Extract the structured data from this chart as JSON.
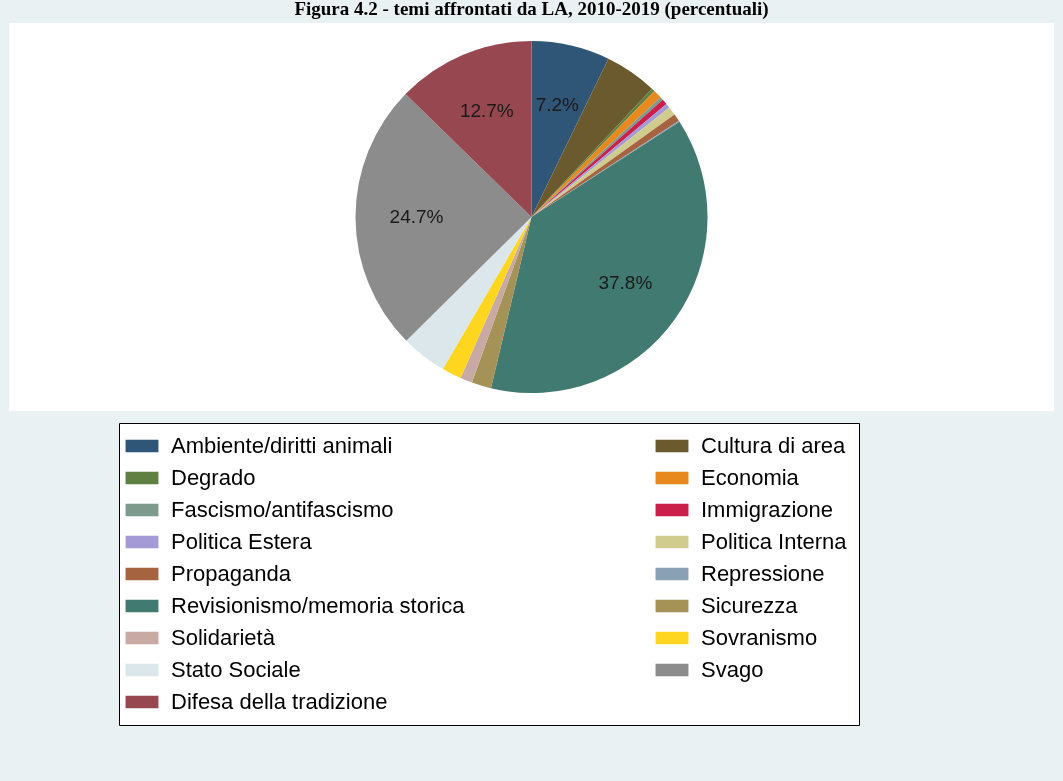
{
  "chart_data": {
    "type": "pie",
    "title": "Figura 4.2 - temi affrontati da LA, 2010-2019 (percentuali)",
    "categories": [
      "Ambiente/diritti animali",
      "Cultura di area",
      "Degrado",
      "Economia",
      "Fascismo/antifascismo",
      "Immigrazione",
      "Politica Estera",
      "Politica Interna",
      "Propaganda",
      "Repressione",
      "Revisionismo/memoria storica",
      "Sicurezza",
      "Solidarietà",
      "Sovranismo",
      "Stato Sociale",
      "Svago",
      "Difesa della tradizione"
    ],
    "values": [
      7.2,
      4.8,
      0.3,
      0.8,
      0.3,
      0.5,
      0.4,
      0.8,
      0.7,
      0.1,
      37.8,
      1.8,
      1.1,
      1.8,
      4.2,
      24.7,
      12.7
    ],
    "value_labels": [
      "7.2%",
      null,
      null,
      null,
      null,
      null,
      null,
      null,
      null,
      null,
      "37.8%",
      null,
      null,
      null,
      null,
      "24.7%",
      "12.7%"
    ],
    "colors": [
      "#2f5677",
      "#6b5a2e",
      "#5f8040",
      "#e8891d",
      "#7e9a8c",
      "#c91f4a",
      "#a39ad6",
      "#d0cc8e",
      "#a5633f",
      "#8aa0b4",
      "#417a70",
      "#a59257",
      "#c8a9a3",
      "#fed61f",
      "#dce7ec",
      "#8c8c8c",
      "#97474f"
    ],
    "legend": "bottom"
  }
}
